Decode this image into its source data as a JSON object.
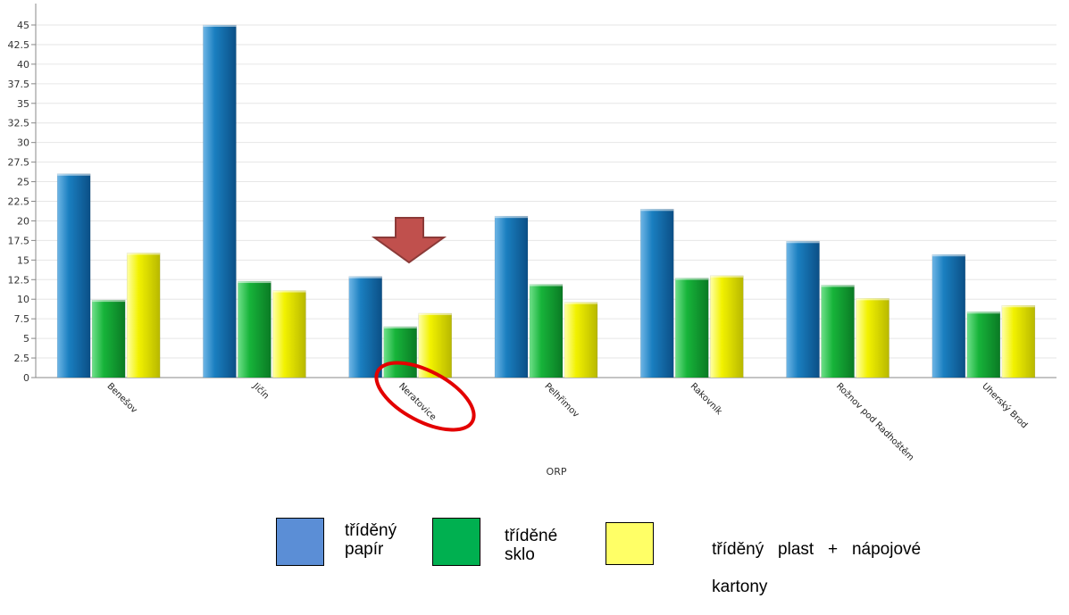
{
  "chart_data": {
    "type": "bar",
    "xlabel": "ORP",
    "ylabel": "",
    "ylim": [
      0,
      45
    ],
    "yticks": [
      0,
      2.5,
      5,
      7.5,
      10,
      12.5,
      15,
      17.5,
      20,
      22.5,
      25,
      27.5,
      30,
      32.5,
      35,
      37.5,
      40,
      42.5,
      45
    ],
    "categories": [
      "Benešov",
      "Jičín",
      "Neratovice",
      "Pelhřimov",
      "Rakovník",
      "Rožnov pod Radhoštěm",
      "Uherský Brod"
    ],
    "series": [
      {
        "name": "tříděný papír",
        "color": "#1a7fc0",
        "values": [
          26,
          45,
          12.9,
          20.6,
          21.5,
          17.4,
          15.7
        ]
      },
      {
        "name": "tříděné sklo",
        "color": "#17b43a",
        "values": [
          9.9,
          12.3,
          6.5,
          11.9,
          12.7,
          11.8,
          8.4
        ]
      },
      {
        "name": "tříděný plast + nápojové kartony",
        "color": "#f2f200",
        "values": [
          15.9,
          11.1,
          8.2,
          9.6,
          13.0,
          10.1,
          9.2
        ]
      }
    ],
    "grid": true,
    "legend_position": "bottom",
    "annotations": {
      "highlighted_category": "Neratovice",
      "arrow_color": "#c0504d",
      "circle_color": "#e00000"
    }
  },
  "legend": [
    {
      "line1": "tříděný",
      "line2": "papír",
      "color": "#5b8ed6"
    },
    {
      "line1": "tříděné",
      "line2": "sklo",
      "color": "#00b050"
    },
    {
      "line1": "tříděný   plast   +   nápojové",
      "line2": "kartony",
      "color": "#ffff66"
    }
  ]
}
